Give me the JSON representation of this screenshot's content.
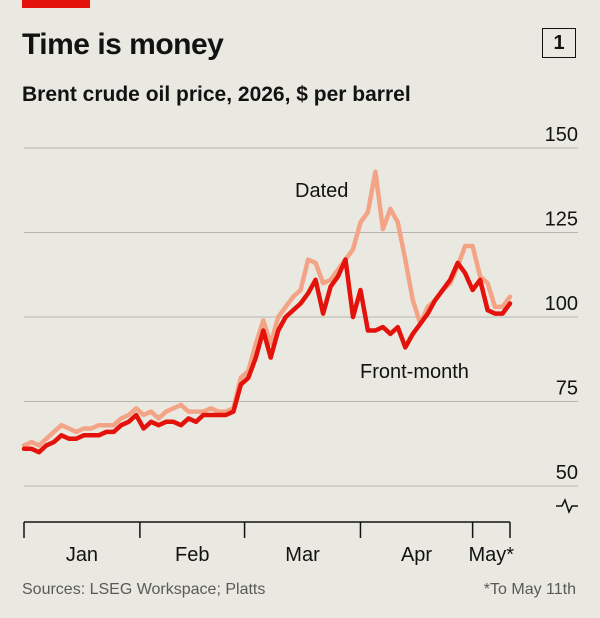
{
  "header": {
    "title": "Time is money",
    "chart_number": "1",
    "subtitle": "Brent crude oil price, 2026, $ per barrel"
  },
  "footer": {
    "source": "Sources: LSEG Workspace; Platts",
    "note": "*To May 11th"
  },
  "colors": {
    "accent": "#e3120b",
    "front_month": "#e3120b",
    "dated": "#f4a486",
    "grid": "#b7b7b0",
    "background": "#e9e8e1"
  },
  "chart_data": {
    "type": "line",
    "title": "Time is money",
    "subtitle": "Brent crude oil price, 2026, $ per barrel",
    "xlabel": "",
    "ylabel": "",
    "ylim": [
      50,
      150
    ],
    "yticks": [
      50,
      75,
      100,
      125,
      150
    ],
    "axis_break": true,
    "grid": true,
    "x_ticks": [
      "Jan",
      "Feb",
      "Mar",
      "Apr",
      "May*"
    ],
    "x_unit": "day of 2026",
    "xlim": [
      1,
      131
    ],
    "series": [
      {
        "name": "Dated",
        "label_position": "above",
        "x": [
          1,
          3,
          5,
          7,
          9,
          11,
          13,
          15,
          17,
          19,
          21,
          23,
          25,
          27,
          29,
          31,
          33,
          35,
          37,
          39,
          41,
          43,
          45,
          47,
          49,
          51,
          53,
          55,
          57,
          59,
          61,
          63,
          65,
          67,
          69,
          71,
          73,
          75,
          77,
          79,
          81,
          83,
          85,
          87,
          89,
          91,
          93,
          95,
          97,
          99,
          101,
          103,
          105,
          107,
          109,
          111,
          113,
          115,
          117,
          119,
          121,
          123,
          125,
          127,
          129,
          131
        ],
        "y": [
          62,
          63,
          62,
          64,
          66,
          68,
          67,
          66,
          67,
          67,
          68,
          68,
          68,
          70,
          71,
          73,
          71,
          72,
          70,
          72,
          73,
          74,
          72,
          72,
          72,
          73,
          72,
          72,
          73,
          82,
          84,
          92,
          99,
          92,
          100,
          103,
          106,
          108,
          117,
          116,
          110,
          111,
          114,
          117,
          120,
          128,
          131,
          143,
          126,
          132,
          128,
          117,
          105,
          98,
          103,
          105,
          108,
          110,
          115,
          121,
          121,
          112,
          110,
          103,
          103,
          106
        ]
      },
      {
        "name": "Front-month",
        "label_position": "below",
        "x": [
          1,
          3,
          5,
          7,
          9,
          11,
          13,
          15,
          17,
          19,
          21,
          23,
          25,
          27,
          29,
          31,
          33,
          35,
          37,
          39,
          41,
          43,
          45,
          47,
          49,
          51,
          53,
          55,
          57,
          59,
          61,
          63,
          65,
          67,
          69,
          71,
          73,
          75,
          77,
          79,
          81,
          83,
          85,
          87,
          89,
          91,
          93,
          95,
          97,
          99,
          101,
          103,
          105,
          107,
          109,
          111,
          113,
          115,
          117,
          119,
          121,
          123,
          125,
          127,
          129,
          131
        ],
        "y": [
          61,
          61,
          60,
          62,
          63,
          65,
          64,
          64,
          65,
          65,
          65,
          66,
          66,
          68,
          69,
          71,
          67,
          69,
          68,
          69,
          69,
          68,
          70,
          69,
          71,
          71,
          71,
          71,
          72,
          80,
          82,
          88,
          96,
          88,
          96,
          100,
          102,
          104,
          107,
          111,
          101,
          109,
          112,
          117,
          100,
          108,
          96,
          96,
          97,
          95,
          97,
          91,
          95,
          98,
          101,
          105,
          108,
          111,
          116,
          113,
          108,
          111,
          102,
          101,
          101,
          104
        ]
      }
    ]
  }
}
